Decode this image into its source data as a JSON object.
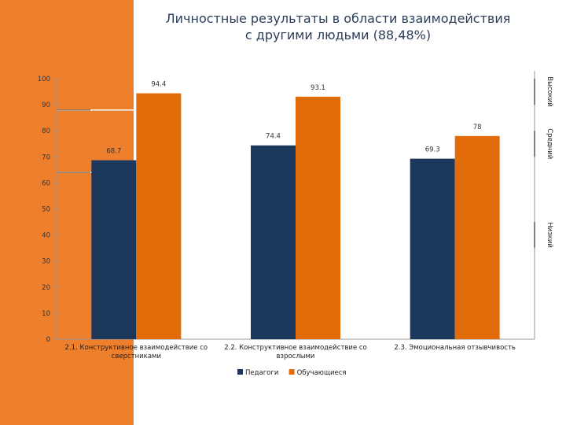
{
  "title_line1": "Личностные результаты в области взаимодействия",
  "title_line2": "с другими людьми (88,48%)",
  "accent_color": "#ee7f2d",
  "chart_data": {
    "type": "bar",
    "title": "Личностные результаты в области взаимодействия с другими людьми (88,48%)",
    "categories": [
      [
        "2.1. Конструктивное взаимодействие со",
        "сверстниками"
      ],
      [
        "2.2. Конструктивное взаимодействие со",
        "взрослыми"
      ],
      [
        "2.3. Эмоциональная отзывчивость"
      ]
    ],
    "series": [
      {
        "name": "Педагоги",
        "color": "#1b375c",
        "values": [
          68.7,
          74.4,
          69.3
        ]
      },
      {
        "name": "Обучающиеся",
        "color": "#e36c0a",
        "values": [
          94.4,
          93.1,
          78
        ]
      }
    ],
    "value_labels": [
      [
        "68.7",
        "74.4",
        "69.3"
      ],
      [
        "94.4",
        "93.1",
        "78"
      ]
    ],
    "y_ticks": [
      0,
      10,
      20,
      30,
      40,
      50,
      60,
      70,
      80,
      90,
      100
    ],
    "ylim": [
      0,
      100
    ],
    "reference_lines": [
      88,
      64
    ],
    "right_bands": [
      {
        "label": "Высокий",
        "from": 90,
        "to": 100
      },
      {
        "label": "Средний",
        "from": 70,
        "to": 80
      },
      {
        "label": "Низкий",
        "from": 35,
        "to": 45
      }
    ],
    "legend_position": "bottom"
  }
}
